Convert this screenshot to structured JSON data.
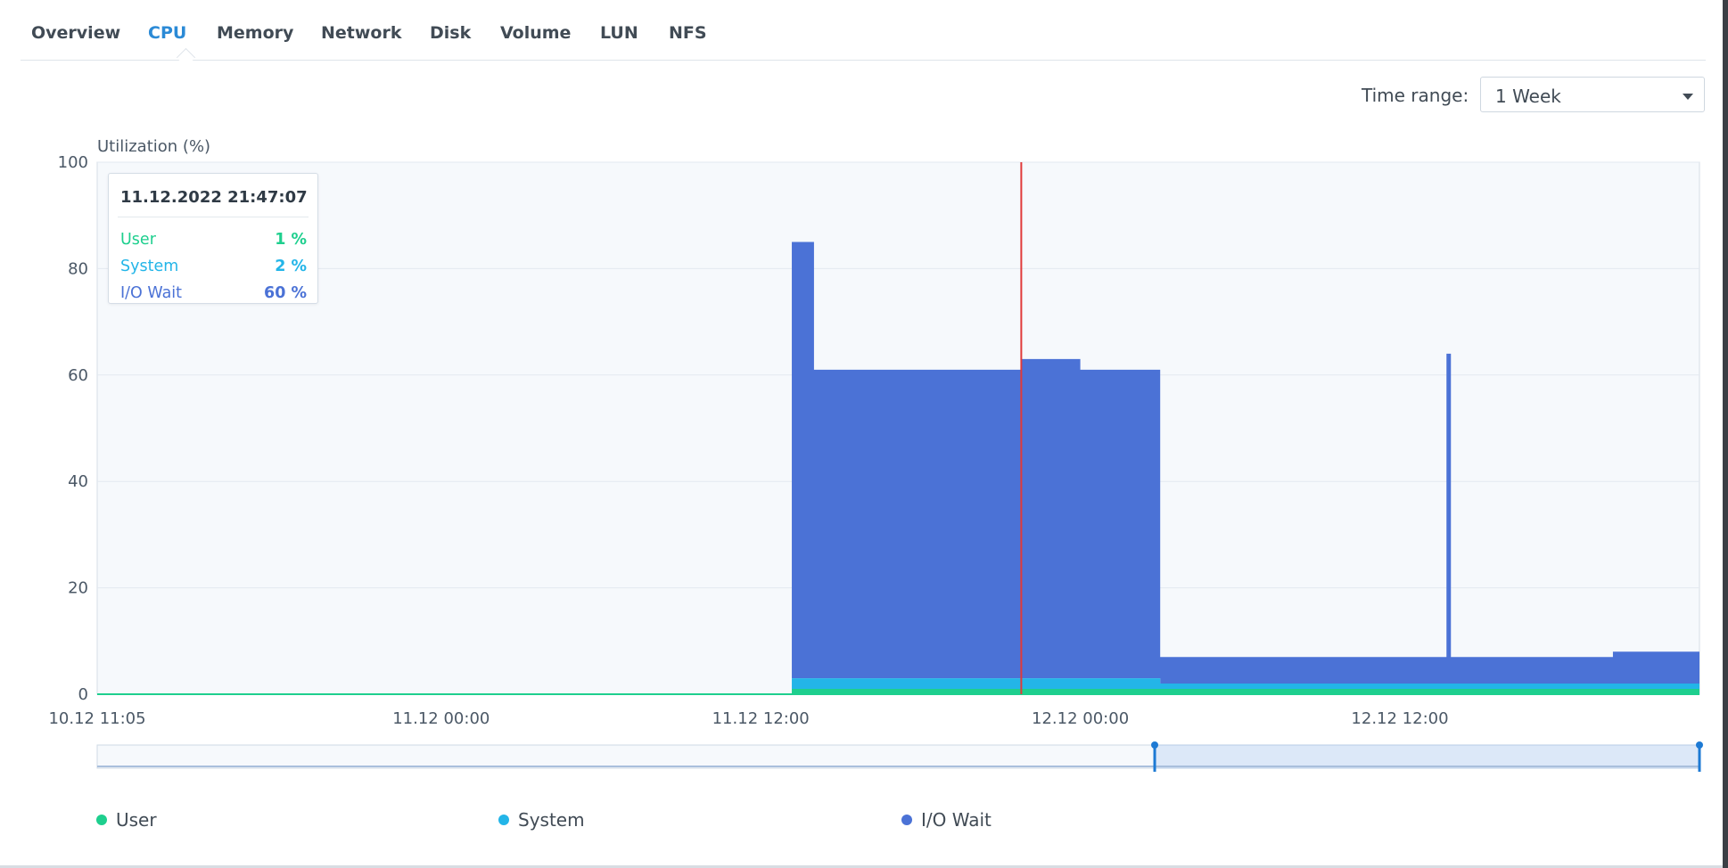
{
  "tabs": [
    {
      "label": "Overview",
      "active": false
    },
    {
      "label": "CPU",
      "active": true
    },
    {
      "label": "Memory",
      "active": false
    },
    {
      "label": "Network",
      "active": false
    },
    {
      "label": "Disk",
      "active": false
    },
    {
      "label": "Volume",
      "active": false
    },
    {
      "label": "LUN",
      "active": false
    },
    {
      "label": "NFS",
      "active": false
    }
  ],
  "time_range": {
    "label": "Time range:",
    "value": "1 Week"
  },
  "tooltip": {
    "time": "11.12.2022 21:47:07",
    "rows": [
      {
        "name": "User",
        "value": "1 %",
        "color": "#1ecf8e"
      },
      {
        "name": "System",
        "value": "2 %",
        "color": "#23b5e8"
      },
      {
        "name": "I/O Wait",
        "value": "60 %",
        "color": "#4b72d6"
      }
    ]
  },
  "colors": {
    "user": "#1ecf8e",
    "system": "#23b5e8",
    "io_wait": "#4b72d6",
    "cursor": "#e03a3a",
    "plot_bg": "#f6f9fc",
    "grid": "#e3e9f0",
    "tab_active": "#2b8ad6"
  },
  "chart_data": {
    "type": "area",
    "ylabel": "Utilization (%)",
    "ylim": [
      0,
      100
    ],
    "yticks": [
      "100",
      "80",
      "60",
      "40",
      "20",
      "0"
    ],
    "xticks": [
      "10.12 11:05",
      "11.12 00:00",
      "11.12 12:00",
      "12.12 00:00",
      "12.12 12:00"
    ],
    "stacked": true,
    "cursor_time": "11.12.2022 21:47:07",
    "x": [
      "10.12 11:05",
      "11.12 00:00",
      "11.12 12:00",
      "11.12 13:00",
      "11.12 13:10",
      "11.12 14:00",
      "11.12 18:00",
      "11.12 21:47",
      "12.12 00:00",
      "12.12 02:50",
      "12.12 03:00",
      "12.12 12:00",
      "12.12 13:45",
      "12.12 13:55",
      "12.12 18:00",
      "12.12 20:00"
    ],
    "series": [
      {
        "name": "User",
        "values": [
          0,
          0,
          0,
          0,
          1,
          1,
          1,
          1,
          1,
          1,
          1,
          1,
          1,
          1,
          1,
          1
        ]
      },
      {
        "name": "System",
        "values": [
          0,
          0,
          0,
          0,
          2,
          2,
          2,
          2,
          2,
          2,
          1,
          1,
          1,
          1,
          1,
          1
        ]
      },
      {
        "name": "I/O Wait",
        "values": [
          0,
          0,
          0,
          0,
          82,
          58,
          58,
          60,
          58,
          58,
          5,
          5,
          62,
          5,
          5,
          6
        ]
      }
    ],
    "legend": [
      "User",
      "System",
      "I/O Wait"
    ],
    "legend_position": "bottom",
    "grid": true
  }
}
